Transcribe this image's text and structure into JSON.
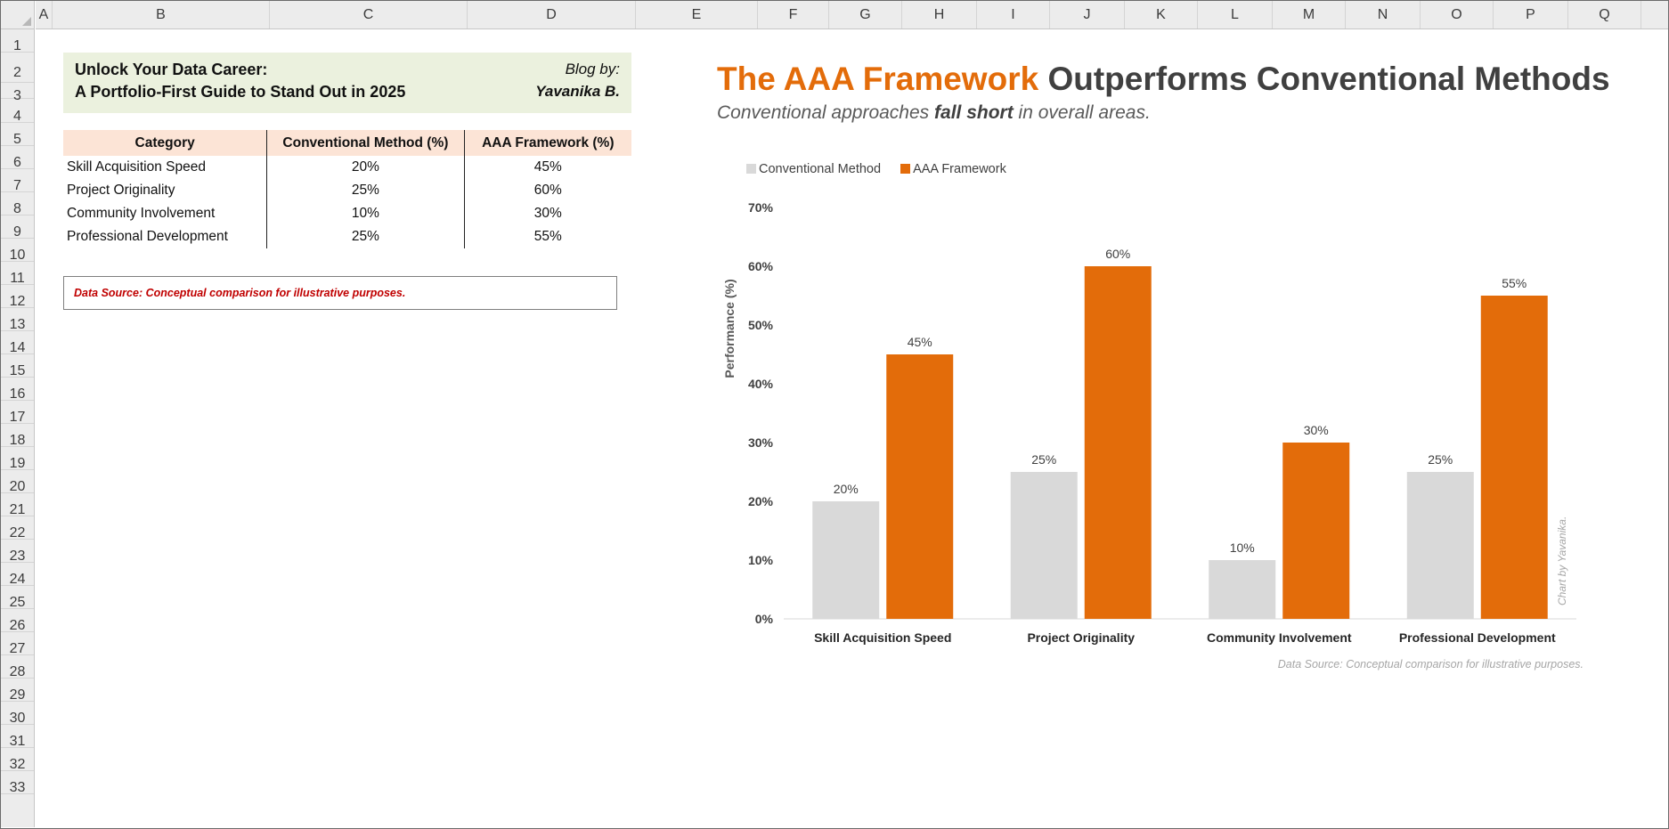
{
  "sheet": {
    "columns": [
      "A",
      "B",
      "C",
      "D",
      "E",
      "F",
      "G",
      "H",
      "I",
      "J",
      "K",
      "L",
      "M",
      "N",
      "O",
      "P",
      "Q",
      "R"
    ],
    "rows": [
      "1",
      "2",
      "3",
      "4",
      "5",
      "6",
      "7",
      "8",
      "9",
      "10",
      "11",
      "12",
      "13",
      "14",
      "15",
      "16",
      "17",
      "18",
      "19",
      "20",
      "21",
      "22",
      "23",
      "24",
      "25",
      "26",
      "27",
      "28",
      "29",
      "30",
      "31",
      "32",
      "33"
    ]
  },
  "header_box": {
    "title_line1": "Unlock Your Data Career:",
    "title_line2": "A Portfolio-First Guide to Stand Out in 2025",
    "blog_by": "Blog by:",
    "author": "Yavanika B."
  },
  "table": {
    "headers": [
      "Category",
      "Conventional Method (%)",
      "AAA Framework (%)"
    ],
    "rows": [
      [
        "Skill Acquisition Speed",
        "20%",
        "45%"
      ],
      [
        "Project Originality",
        "25%",
        "60%"
      ],
      [
        "Community Involvement",
        "10%",
        "30%"
      ],
      [
        "Professional Development",
        "25%",
        "55%"
      ]
    ],
    "header_fill": "#fce4d6"
  },
  "source_note": "Data Source: Conceptual comparison for illustrative purposes.",
  "chart_title": {
    "highlight": "The AAA Framework",
    "rest": "Outperforms Conventional Methods",
    "sub_before": "Conventional approaches ",
    "sub_bold": "fall short",
    "sub_after": " in overall areas."
  },
  "chart_data": {
    "type": "bar",
    "categories": [
      "Skill Acquisition Speed",
      "Project Originality",
      "Community Involvement",
      "Professional Development"
    ],
    "series": [
      {
        "name": "Conventional Method",
        "values": [
          20,
          25,
          10,
          25
        ],
        "labels": [
          "20%",
          "25%",
          "10%",
          "25%"
        ],
        "color": "#d9d9d9"
      },
      {
        "name": "AAA Framework",
        "values": [
          45,
          60,
          30,
          55
        ],
        "labels": [
          "45%",
          "60%",
          "30%",
          "55%"
        ],
        "color": "#e36c0a"
      }
    ],
    "ylabel": "Performance (%)",
    "yticks": [
      "0%",
      "10%",
      "20%",
      "30%",
      "40%",
      "50%",
      "60%",
      "70%"
    ],
    "ylim": [
      0,
      70
    ],
    "legend": "top-left",
    "grid": false,
    "source": "Data Source: Conceptual comparison for illustrative purposes.",
    "watermark": "Chart by Yavanika."
  }
}
